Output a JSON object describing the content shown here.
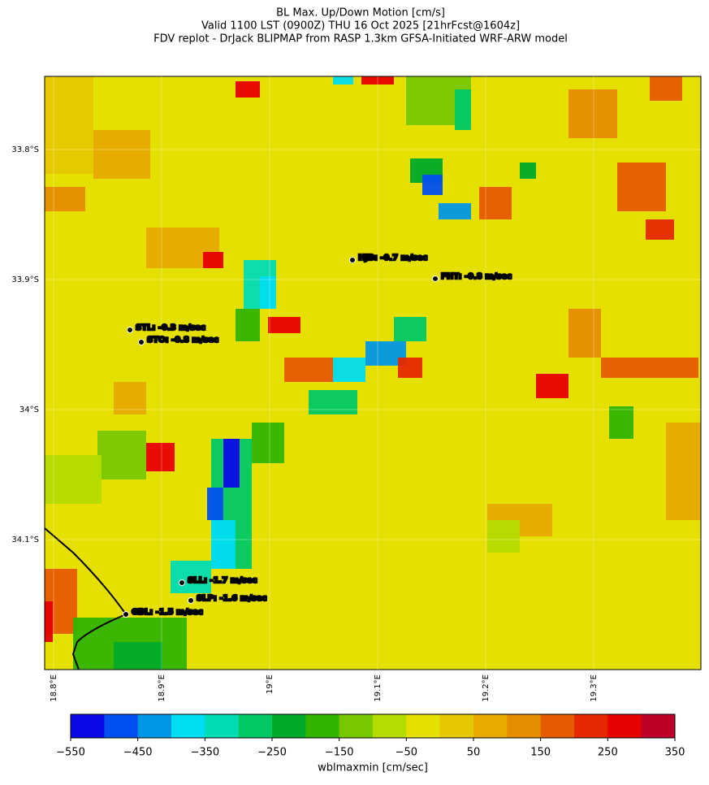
{
  "title": [
    "BL Max. Up/Down Motion [cm/s]",
    "Valid 1100 LST (0900Z) THU 16 Oct 2025 [21hrFcst@1604z]",
    "FDV replot - DrJack BLIPMAP from RASP 1.3km GFSA-Initiated WRF-ARW model"
  ],
  "map": {
    "lat_labels": [
      "33.8°S",
      "33.9°S",
      "34°S",
      "34.1°S"
    ],
    "lon_labels": [
      "18.8°E",
      "18.9°E",
      "19°E",
      "19.1°E",
      "19.2°E",
      "19.3°E"
    ],
    "stations": [
      "HJB: -0.7 m/sec",
      "FHT: -0.8 m/sec",
      "STL: -0.3 m/sec",
      "STO: -0.8 m/sec",
      "SLL: -1.7 m/sec",
      "SLP: -1.6 m/sec",
      "GBL: -1.5 m/sec"
    ]
  },
  "colorbar": {
    "label": "wblmaxmin [cm/sec]",
    "lim": [
      -550,
      350
    ],
    "ticks": [
      {
        "value": -550,
        "label": "−550"
      },
      {
        "value": -450,
        "label": "−450"
      },
      {
        "value": -350,
        "label": "−350"
      },
      {
        "value": -250,
        "label": "−250"
      },
      {
        "value": -150,
        "label": "−150"
      },
      {
        "value": -50,
        "label": "−50"
      },
      50,
      150,
      250,
      350
    ],
    "colors": [
      "#0a0ae6",
      "#0050f0",
      "#0096e6",
      "#00dcf0",
      "#00dcb4",
      "#00c864",
      "#00aa28",
      "#32b400",
      "#78c800",
      "#b4dc00",
      "#e6e000",
      "#e6c800",
      "#e6aa00",
      "#e68c00",
      "#e65a00",
      "#e62800",
      "#e60000",
      "#be0028"
    ]
  }
}
